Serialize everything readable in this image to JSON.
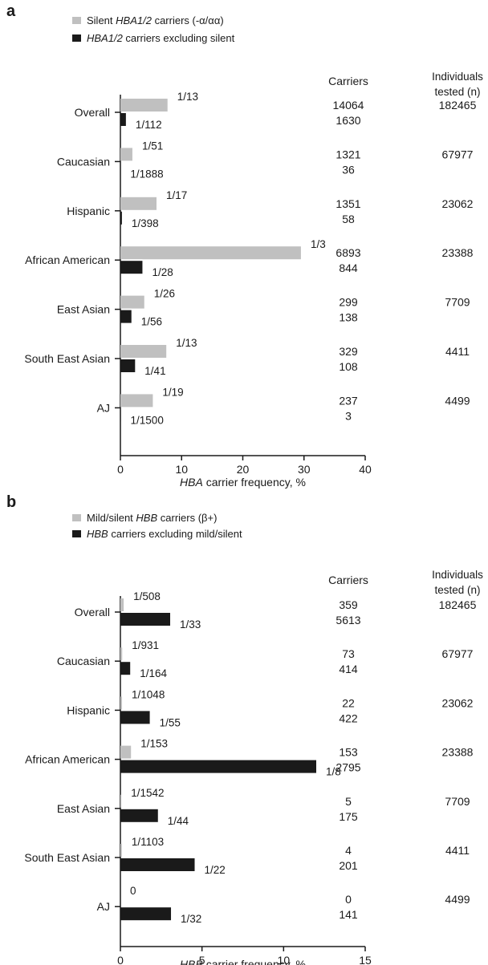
{
  "colors": {
    "silent": "#c0c0c0",
    "carrier": "#1a1a1a",
    "axis": "#1a1a1a",
    "text": "#1a1a1a"
  },
  "chart_data": [
    {
      "panel": "a",
      "type": "bar",
      "orientation": "horizontal",
      "legend": [
        {
          "prefix": "Silent ",
          "italic": "HBA1/2",
          "suffix": " carriers (-α/αα)"
        },
        {
          "prefix": "",
          "italic": "HBA1/2",
          "suffix": " carriers excluding silent"
        }
      ],
      "xlabel": {
        "italic": "HBA",
        "rest": " carrier frequency, %"
      },
      "xlim": [
        0,
        40
      ],
      "xticks": [
        0,
        10,
        20,
        30,
        40
      ],
      "column_headers": {
        "carriers": "Carriers",
        "individuals": [
          "Individuals",
          "tested (n)"
        ]
      },
      "categories": [
        "Overall",
        "Caucasian",
        "Hispanic",
        "African American",
        "East Asian",
        "South East Asian",
        "AJ"
      ],
      "series": [
        {
          "name": "Silent HBA1/2 carriers (-α/αα)",
          "values": [
            7.7,
            1.96,
            5.9,
            29.5,
            3.9,
            7.5,
            5.3
          ],
          "labels": [
            "1/13",
            "1/51",
            "1/17",
            "1/3",
            "1/26",
            "1/13",
            "1/19"
          ],
          "carriers": [
            "14064",
            "1321",
            "1351",
            "6893",
            "299",
            "329",
            "237"
          ]
        },
        {
          "name": "HBA1/2 carriers excluding silent",
          "values": [
            0.9,
            0.05,
            0.25,
            3.6,
            1.8,
            2.4,
            0.07
          ],
          "labels": [
            "1/112",
            "1/1888",
            "1/398",
            "1/28",
            "1/56",
            "1/41",
            "1/1500"
          ],
          "carriers": [
            "1630",
            "36",
            "58",
            "844",
            "138",
            "108",
            "3"
          ]
        }
      ],
      "individuals_tested": [
        "182465",
        "67977",
        "23062",
        "23388",
        "7709",
        "4411",
        "4499"
      ]
    },
    {
      "panel": "b",
      "type": "bar",
      "orientation": "horizontal",
      "legend": [
        {
          "prefix": "Mild/silent ",
          "italic": "HBB",
          "suffix": " carriers (β+)"
        },
        {
          "prefix": "",
          "italic": "HBB",
          "suffix": " carriers excluding mild/silent"
        }
      ],
      "xlabel": {
        "italic": "HBB",
        "rest": " carrier frequency, %"
      },
      "xlim": [
        0,
        15
      ],
      "xticks": [
        0,
        5,
        10,
        15
      ],
      "column_headers": {
        "carriers": "Carriers",
        "individuals": [
          "Individuals",
          "tested (n)"
        ]
      },
      "categories": [
        "Overall",
        "Caucasian",
        "Hispanic",
        "African American",
        "East Asian",
        "South East Asian",
        "AJ"
      ],
      "series": [
        {
          "name": "Mild/silent HBB carriers (β+)",
          "values": [
            0.2,
            0.11,
            0.1,
            0.65,
            0.06,
            0.09,
            0
          ],
          "labels": [
            "1/508",
            "1/931",
            "1/1048",
            "1/153",
            "1/1542",
            "1/1103",
            "0"
          ],
          "carriers": [
            "359",
            "73",
            "22",
            "153",
            "5",
            "4",
            "0"
          ]
        },
        {
          "name": "HBB carriers excluding mild/silent",
          "values": [
            3.05,
            0.6,
            1.8,
            12.0,
            2.3,
            4.55,
            3.1
          ],
          "labels": [
            "1/33",
            "1/164",
            "1/55",
            "1/8",
            "1/44",
            "1/22",
            "1/32"
          ],
          "carriers": [
            "5613",
            "414",
            "422",
            "2795",
            "175",
            "201",
            "141"
          ]
        }
      ],
      "individuals_tested": [
        "182465",
        "67977",
        "23062",
        "23388",
        "7709",
        "4411",
        "4499"
      ]
    }
  ]
}
